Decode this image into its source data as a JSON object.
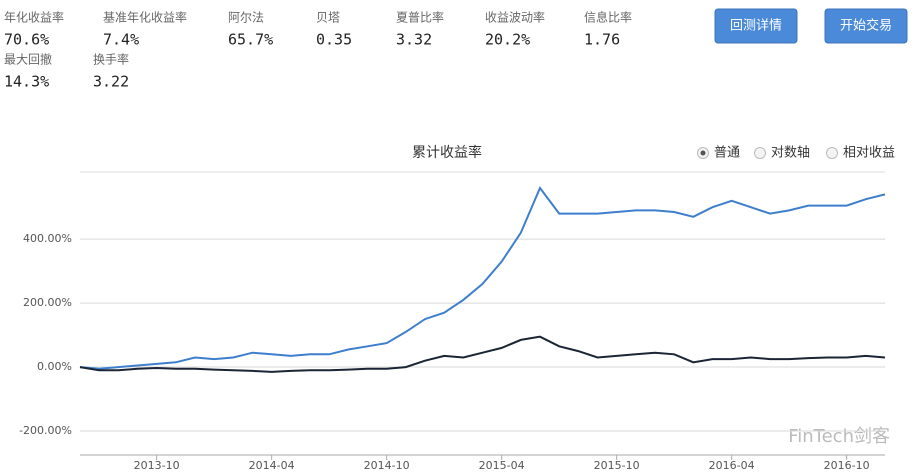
{
  "metrics": [
    {
      "label": "年化收益率",
      "value": "70.6%"
    },
    {
      "label": "基准年化收益率",
      "value": "7.4%"
    },
    {
      "label": "阿尔法",
      "value": "65.7%"
    },
    {
      "label": "贝塔",
      "value": "0.35"
    },
    {
      "label": "夏普比率",
      "value": "3.32"
    },
    {
      "label": "收益波动率",
      "value": "20.2%"
    },
    {
      "label": "信息比率",
      "value": "1.76"
    },
    {
      "label": "最大回撤",
      "value": "14.3%"
    },
    {
      "label": "换手率",
      "value": "3.22"
    }
  ],
  "buttons": [
    "回测详情",
    "开始交易"
  ],
  "watermark": "FinTech剑客",
  "chart_data": {
    "type": "line",
    "title": "累计收益率",
    "options": [
      {
        "label": "普通",
        "selected": true
      },
      {
        "label": "对数轴",
        "selected": false
      },
      {
        "label": "相对收益",
        "selected": false
      }
    ],
    "x": [
      "2013-06",
      "2013-07",
      "2013-08",
      "2013-09",
      "2013-10",
      "2013-11",
      "2013-12",
      "2014-01",
      "2014-02",
      "2014-03",
      "2014-04",
      "2014-05",
      "2014-06",
      "2014-07",
      "2014-08",
      "2014-09",
      "2014-10",
      "2014-11",
      "2014-12",
      "2015-01",
      "2015-02",
      "2015-03",
      "2015-04",
      "2015-05",
      "2015-06",
      "2015-07",
      "2015-08",
      "2015-09",
      "2015-10",
      "2015-11",
      "2015-12",
      "2016-01",
      "2016-02",
      "2016-03",
      "2016-04",
      "2016-05",
      "2016-06",
      "2016-07",
      "2016-08",
      "2016-09",
      "2016-10",
      "2016-11",
      "2016-12"
    ],
    "xlim": [
      "2013-06",
      "2016-12"
    ],
    "xticks": [
      "2013-10",
      "2014-04",
      "2014-10",
      "2015-04",
      "2015-10",
      "2016-04",
      "2016-10"
    ],
    "ylim": [
      -275,
      610
    ],
    "yticks": [
      {
        "value": -200,
        "label": "-200.00%"
      },
      {
        "value": 0,
        "label": "0.00%"
      },
      {
        "value": 200,
        "label": "200.00%"
      },
      {
        "value": 400,
        "label": "400.00%"
      }
    ],
    "grid": true,
    "series": [
      {
        "color": "#3d7fcc",
        "values": [
          0,
          -5,
          0,
          5,
          10,
          15,
          30,
          25,
          30,
          45,
          40,
          35,
          40,
          40,
          55,
          65,
          75,
          110,
          150,
          170,
          210,
          260,
          330,
          420,
          560,
          480,
          480,
          480,
          485,
          490,
          490,
          485,
          470,
          500,
          520,
          500,
          480,
          490,
          505,
          505,
          505,
          525,
          540
        ]
      },
      {
        "color": "#1a2535",
        "values": [
          0,
          -10,
          -10,
          -5,
          -3,
          -5,
          -5,
          -8,
          -10,
          -12,
          -15,
          -12,
          -10,
          -10,
          -8,
          -5,
          -5,
          0,
          20,
          35,
          30,
          45,
          60,
          85,
          95,
          65,
          50,
          30,
          35,
          40,
          45,
          40,
          15,
          25,
          25,
          30,
          25,
          25,
          28,
          30,
          30,
          35,
          30
        ]
      }
    ]
  }
}
